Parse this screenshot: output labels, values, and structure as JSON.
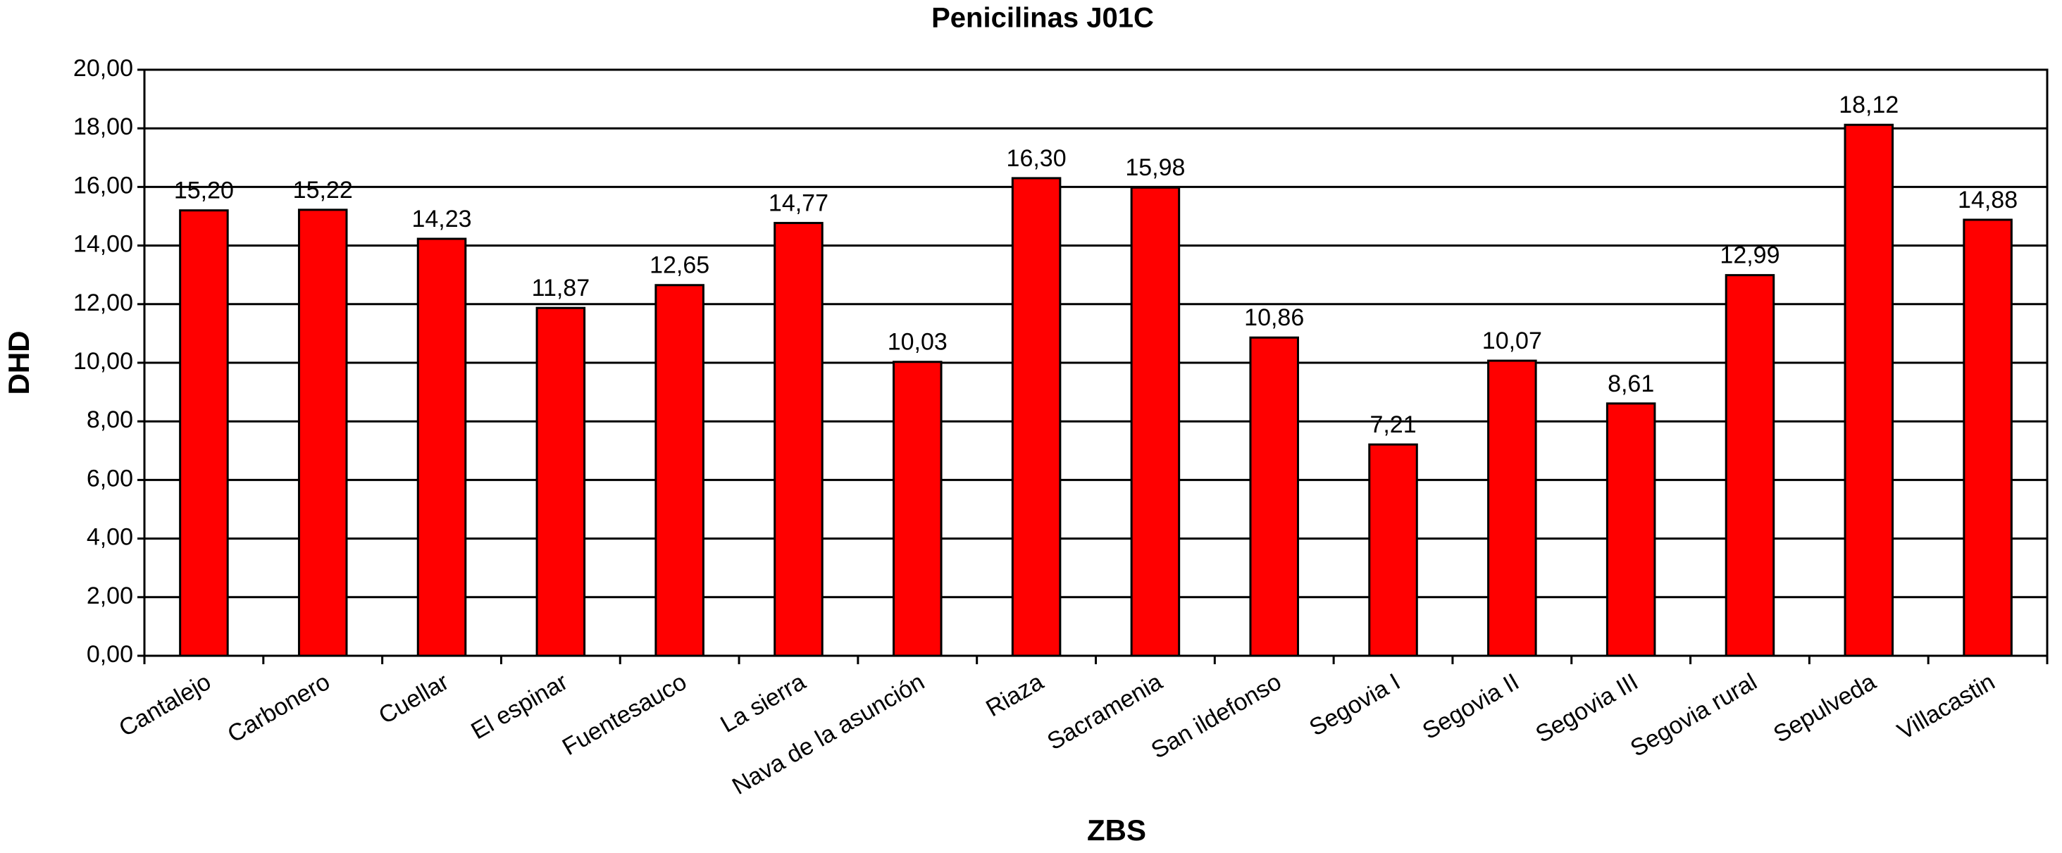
{
  "chart_data": {
    "type": "bar",
    "title": "Penicilinas J01C",
    "x_label": "ZBS",
    "y_label": "DHD",
    "categories": [
      "Cantalejo",
      "Carbonero",
      "Cuellar",
      "El espinar",
      "Fuentesauco",
      "La sierra",
      "Nava de la asunción",
      "Riaza",
      "Sacramenia",
      "San ildefonso",
      "Segovia I",
      "Segovia II",
      "Segovia III",
      "Segovia rural",
      "Sepulveda",
      "Villacastin"
    ],
    "values": [
      15.2,
      15.22,
      14.23,
      11.87,
      12.65,
      14.77,
      10.03,
      16.3,
      15.98,
      10.86,
      7.21,
      10.07,
      8.61,
      12.99,
      18.12,
      14.88
    ],
    "value_labels": [
      "15,20",
      "15,22",
      "14,23",
      "11,87",
      "12,65",
      "14,77",
      "10,03",
      "16,30",
      "15,98",
      "10,86",
      "7,21",
      "10,07",
      "8,61",
      "12,99",
      "18,12",
      "14,88"
    ],
    "color": "#ff0000",
    "ylim": [
      0,
      20
    ],
    "yticks": [
      {
        "value": 0,
        "label": "0,00"
      },
      {
        "value": 2,
        "label": "2,00"
      },
      {
        "value": 4,
        "label": "4,00"
      },
      {
        "value": 6,
        "label": "6,00"
      },
      {
        "value": 8,
        "label": "8,00"
      },
      {
        "value": 10,
        "label": "10,00"
      },
      {
        "value": 12,
        "label": "12,00"
      },
      {
        "value": 14,
        "label": "14,00"
      },
      {
        "value": 16,
        "label": "16,00"
      },
      {
        "value": 18,
        "label": "18,00"
      },
      {
        "value": 20,
        "label": "20,00"
      }
    ],
    "grid": true
  }
}
